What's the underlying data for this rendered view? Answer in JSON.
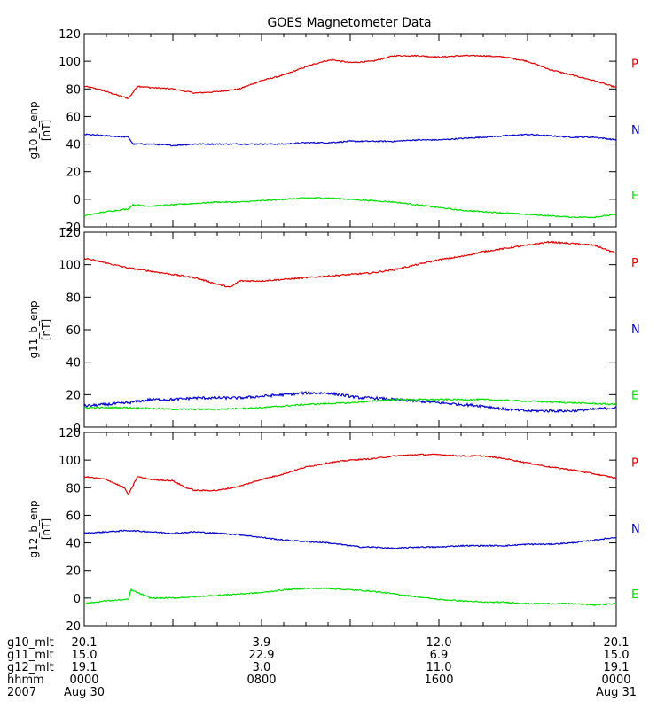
{
  "title": "GOES Magnetometer Data",
  "colors": {
    "P": "#dd0000",
    "N": "#0000cc",
    "E": "#00dd00",
    "axis": "#000000"
  },
  "chart_data": [
    {
      "type": "line",
      "ylabel": "g10_b_enp",
      "yunit": "[nT]",
      "ylim": [
        -20,
        120
      ],
      "yticks": [
        -20,
        0,
        20,
        40,
        60,
        80,
        100,
        120
      ],
      "xlim": [
        0,
        24
      ],
      "legend": [
        "P",
        "N",
        "E"
      ],
      "series": [
        {
          "name": "P",
          "color": "#dd0000",
          "x": [
            0,
            0.6,
            1.2,
            1.8,
            2.0,
            2.4,
            3.0,
            4.0,
            5.0,
            6.0,
            7.0,
            8.0,
            9.0,
            10.0,
            10.8,
            11.2,
            12.0,
            13.0,
            14.0,
            15.0,
            16.0,
            17.0,
            18.0,
            19.0,
            20.0,
            21.0,
            22.0,
            23.0,
            24.0
          ],
          "values": [
            82,
            80,
            77,
            74,
            73,
            82,
            81,
            80,
            77,
            78,
            80,
            86,
            90,
            96,
            100,
            101,
            99,
            100,
            104,
            104,
            103,
            104,
            104,
            103,
            100,
            94,
            90,
            86,
            81
          ]
        },
        {
          "name": "N",
          "color": "#0000cc",
          "x": [
            0,
            1,
            2.0,
            2.2,
            3,
            4,
            5,
            6,
            7,
            8,
            9,
            10,
            11,
            12,
            13,
            14,
            15,
            16,
            17,
            18,
            19,
            20,
            21,
            22,
            23,
            24
          ],
          "values": [
            47,
            46,
            45,
            40,
            40,
            39,
            40,
            40,
            40,
            40,
            40,
            41,
            41,
            42,
            42,
            42,
            43,
            43,
            44,
            45,
            46,
            47,
            46,
            45,
            45,
            43
          ]
        },
        {
          "name": "E",
          "color": "#00dd00",
          "x": [
            0,
            1,
            2.0,
            2.2,
            3,
            4,
            5,
            6,
            7,
            8,
            9,
            10,
            11,
            12,
            13,
            14,
            15,
            16,
            17,
            18,
            19,
            20,
            21,
            22,
            23,
            24
          ],
          "values": [
            -12,
            -9,
            -7,
            -4,
            -5,
            -4,
            -3,
            -2,
            -2,
            -1,
            0,
            1,
            1,
            0,
            -1,
            -2,
            -4,
            -6,
            -8,
            -9,
            -10,
            -11,
            -12,
            -13,
            -13,
            -11
          ]
        }
      ]
    },
    {
      "type": "line",
      "ylabel": "g11_b_enp",
      "yunit": "[nT]",
      "ylim": [
        0,
        120
      ],
      "yticks": [
        0,
        20,
        40,
        60,
        80,
        100,
        120
      ],
      "xlim": [
        0,
        24
      ],
      "legend": [
        "P",
        "N",
        "E"
      ],
      "series": [
        {
          "name": "P",
          "color": "#dd0000",
          "x": [
            0,
            1,
            2,
            3,
            4,
            5,
            6,
            6.6,
            7,
            8,
            9,
            10,
            11,
            12,
            13,
            14,
            15,
            16,
            17,
            18,
            19,
            20,
            21,
            22,
            23,
            24
          ],
          "values": [
            104,
            101,
            98,
            96,
            94,
            92,
            88,
            86,
            90,
            90,
            91,
            92,
            93,
            94,
            95,
            97,
            100,
            103,
            105,
            108,
            110,
            112,
            114,
            113,
            112,
            107
          ]
        },
        {
          "name": "N",
          "color": "#0000cc",
          "x": [
            0,
            1,
            2,
            3,
            4,
            5,
            6,
            7,
            8,
            9,
            10,
            11,
            12,
            12.5,
            13,
            14,
            15,
            16,
            17,
            18,
            19,
            20,
            21,
            22,
            23,
            24
          ],
          "values": [
            13,
            14,
            15,
            17,
            17,
            18,
            18,
            18,
            19,
            20,
            21,
            21,
            19,
            18,
            18,
            17,
            16,
            15,
            14,
            13,
            11,
            10,
            10,
            10,
            11,
            12
          ]
        },
        {
          "name": "E",
          "color": "#00dd00",
          "x": [
            0,
            2,
            4,
            6,
            8,
            10,
            12,
            14,
            16,
            18,
            20,
            22,
            24
          ],
          "values": [
            12,
            12,
            11,
            11,
            12,
            14,
            15,
            17,
            17,
            17,
            16,
            15,
            14
          ]
        }
      ]
    },
    {
      "type": "line",
      "ylabel": "g12_b_enp",
      "yunit": "[nT]",
      "ylim": [
        -20,
        120
      ],
      "yticks": [
        -20,
        0,
        20,
        40,
        60,
        80,
        100,
        120
      ],
      "xlim": [
        0,
        24
      ],
      "legend": [
        "P",
        "N",
        "E"
      ],
      "series": [
        {
          "name": "P",
          "color": "#dd0000",
          "x": [
            0,
            1,
            1.8,
            2.0,
            2.4,
            3,
            4,
            4.6,
            5,
            6,
            7,
            8,
            9,
            10,
            11,
            12,
            13,
            14,
            15,
            16,
            17,
            18,
            19,
            20,
            21,
            22,
            23,
            24
          ],
          "values": [
            88,
            86,
            80,
            75,
            88,
            86,
            85,
            80,
            78,
            78,
            81,
            86,
            90,
            95,
            98,
            100,
            101,
            103,
            104,
            104,
            103,
            103,
            101,
            98,
            95,
            93,
            90,
            87
          ]
        },
        {
          "name": "N",
          "color": "#0000cc",
          "x": [
            0,
            1,
            2,
            3,
            4,
            5,
            6,
            7,
            8,
            9,
            10,
            11,
            12,
            12.5,
            13,
            14,
            15,
            16,
            17,
            18,
            19,
            20,
            21,
            22,
            23,
            24
          ],
          "values": [
            47,
            48,
            49,
            48,
            47,
            48,
            47,
            46,
            44,
            42,
            41,
            40,
            38,
            37,
            37,
            36,
            37,
            37,
            38,
            38,
            38,
            39,
            39,
            40,
            42,
            44
          ]
        },
        {
          "name": "E",
          "color": "#00dd00",
          "x": [
            0,
            1,
            2.0,
            2.1,
            3,
            4,
            5,
            6,
            7,
            8,
            9,
            10,
            11,
            12,
            13,
            14,
            15,
            16,
            17,
            18,
            19,
            20,
            21,
            22,
            23,
            24
          ],
          "values": [
            -4,
            -2,
            -1,
            6,
            0,
            0,
            1,
            2,
            3,
            4,
            6,
            7,
            7,
            6,
            5,
            3,
            1,
            -1,
            -2,
            -3,
            -3,
            -4,
            -4,
            -4,
            -5,
            -4
          ]
        }
      ]
    }
  ],
  "footer": {
    "row_labels": [
      "g10_mlt",
      "g11_mlt",
      "g12_mlt",
      "hhmm",
      "2007"
    ],
    "columns": [
      {
        "x": 0,
        "values": [
          "20.1",
          "15.0",
          "19.1",
          "0000",
          "Aug 30"
        ]
      },
      {
        "x": 8,
        "values": [
          "3.9",
          "22.9",
          "3.0",
          "0800",
          ""
        ]
      },
      {
        "x": 16,
        "values": [
          "12.0",
          "6.9",
          "11.0",
          "1600",
          ""
        ]
      },
      {
        "x": 24,
        "values": [
          "20.1",
          "15.0",
          "19.1",
          "0000",
          "Aug 31"
        ]
      }
    ]
  }
}
